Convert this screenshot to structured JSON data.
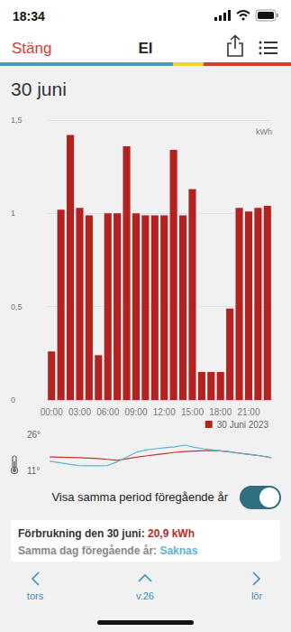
{
  "status_bar": {
    "time": "18:34"
  },
  "header": {
    "close": "Stäng",
    "title": "El"
  },
  "date": "30 juni",
  "chart_data": [
    {
      "type": "bar",
      "ylabel": "kWh",
      "categories": [
        "00:00",
        null,
        null,
        "03:00",
        null,
        null,
        "06:00",
        null,
        null,
        "09:00",
        null,
        null,
        "12:00",
        null,
        null,
        "15:00",
        null,
        null,
        "18:00",
        null,
        null,
        "21:00",
        null,
        null
      ],
      "series": [
        {
          "name": "30 Juni 2023",
          "color": "#b3221f",
          "values": [
            0.26,
            1.02,
            1.42,
            1.03,
            0.99,
            0.24,
            1.0,
            1.0,
            1.36,
            1.0,
            0.99,
            0.99,
            0.99,
            1.34,
            0.99,
            1.13,
            0.15,
            0.15,
            0.15,
            0.49,
            1.03,
            1.01,
            1.03,
            1.04
          ]
        }
      ],
      "ylim": [
        0,
        1.5
      ],
      "yticks": [
        0,
        {
          "value": 0.5,
          "label": "0,5"
        },
        1,
        {
          "value": 1.5,
          "label": "1,5"
        }
      ],
      "grid": true,
      "legend": "bottom-right"
    },
    {
      "type": "line",
      "categories": [
        null,
        null,
        null,
        null,
        null,
        null,
        null,
        null,
        null,
        null,
        null,
        null,
        null,
        null,
        null,
        null,
        null,
        null,
        null,
        null,
        null,
        null,
        null,
        null
      ],
      "series": [
        {
          "color": "#c0392b",
          "values": [
            16.6,
            16.5,
            16.4,
            16.3,
            16.1,
            15.9,
            15.6,
            15.2,
            15.8,
            16.5,
            17.0,
            17.5,
            18.0,
            18.5,
            18.8,
            19.0,
            19.2,
            19.3,
            19.0,
            18.5,
            18.0,
            17.5,
            17.0,
            16.3
          ]
        },
        {
          "color": "#5bb5d5",
          "values": [
            14.8,
            14.2,
            13.6,
            13.0,
            12.9,
            12.9,
            13.0,
            14.5,
            16.5,
            18.5,
            19.5,
            20.0,
            20.4,
            20.8,
            21.5,
            20.6,
            20.0,
            19.5,
            19.0,
            18.6,
            18.0,
            17.5,
            17.0,
            16.3
          ]
        }
      ],
      "ylim": [
        11,
        26
      ],
      "yticks": [
        {
          "value": 11,
          "label": "11°"
        },
        {
          "value": 26,
          "label": "26°"
        }
      ],
      "tick_labels": "y",
      "grid": false
    }
  ],
  "toggle": {
    "label": "Visa samma period föregående år",
    "on": true
  },
  "summary": {
    "consumption_label": "Förbrukning den 30 juni:",
    "consumption_value": "20,9 kWh",
    "previous_label": "Samma dag föregående år:",
    "previous_value": "Saknas"
  },
  "nav": {
    "previous": "tors",
    "week": "v.26",
    "next": "lör"
  }
}
